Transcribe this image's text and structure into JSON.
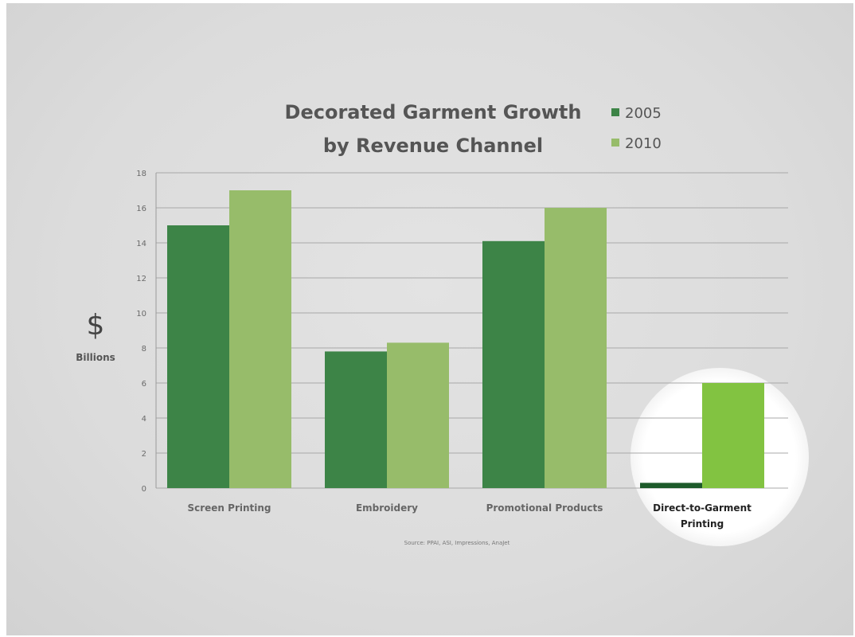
{
  "chart_data": {
    "type": "bar",
    "title_line1": "Decorated Garment Growth",
    "title_line2": "by Revenue Channel",
    "categories": [
      "Screen Printing",
      "Embroidery",
      "Promotional Products",
      "Direct-to-Garment Printing"
    ],
    "category_lines": [
      [
        "Screen Printing"
      ],
      [
        "Embroidery"
      ],
      [
        "Promotional Products"
      ],
      [
        "Direct-to-Garment",
        "Printing"
      ]
    ],
    "series": [
      {
        "name": "2005",
        "values": [
          15,
          7.8,
          14.1,
          0.3
        ]
      },
      {
        "name": "2010",
        "values": [
          17,
          8.3,
          16,
          6
        ]
      }
    ],
    "ylim": [
      0,
      18
    ],
    "yticks": [
      "0",
      "2",
      "4",
      "6",
      "8",
      "10",
      "12",
      "14",
      "16",
      "18"
    ],
    "ylabel_symbol": "$",
    "ylabel": "Billions",
    "xlabel": "",
    "grid": true,
    "legend_position": "top-right",
    "source": "Source: PPAI, ASI, Impressions, AnaJet",
    "highlighted_category": "Direct-to-Garment Printing",
    "colors": {
      "series_2005": "#3d8447",
      "series_2010": "#97bc6a",
      "highlight_2005": "#1d5a2a",
      "highlight_2010": "#82c341",
      "grid": "#a8a8a8",
      "background": "#dedede",
      "spotlight": "#ffffff"
    }
  }
}
